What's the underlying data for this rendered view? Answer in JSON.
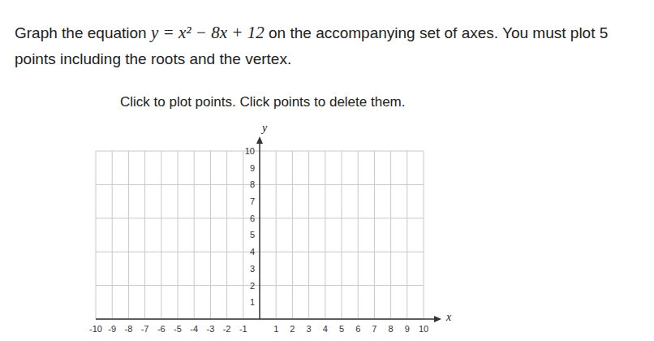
{
  "question": {
    "before": "Graph the equation",
    "equation": "y = x² − 8x + 12",
    "after": "on the accompanying set of axes. You must plot 5 points including the roots and the vertex."
  },
  "instruction": "Click to plot points. Click points to delete them.",
  "chart_data": {
    "type": "scatter",
    "x": [],
    "values": [],
    "xlabel": "x",
    "ylabel": "y",
    "xlim": [
      -10,
      10
    ],
    "ylim": [
      0,
      10
    ],
    "xticks": [
      -10,
      -9,
      -8,
      -7,
      -6,
      -5,
      -4,
      -3,
      -2,
      -1,
      1,
      2,
      3,
      4,
      5,
      6,
      7,
      8,
      9,
      10
    ],
    "yticks": [
      1,
      2,
      3,
      4,
      5,
      6,
      7,
      8,
      9,
      10
    ],
    "grid": true
  }
}
